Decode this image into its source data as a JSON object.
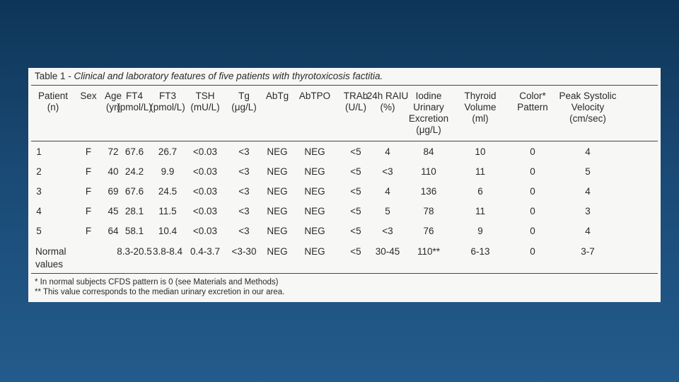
{
  "table": {
    "title_prefix": "Table 1 - ",
    "title_caption": "Clinical and laboratory features of five patients with thyrotoxicosis factitia.",
    "columns": [
      {
        "key": "patient",
        "line1": "Patient",
        "line2": "(n)",
        "line3": "",
        "line4": ""
      },
      {
        "key": "sex",
        "line1": "Sex",
        "line2": "",
        "line3": "",
        "line4": ""
      },
      {
        "key": "age",
        "line1": "Age",
        "line2": "(yr)",
        "line3": "",
        "line4": ""
      },
      {
        "key": "ft4",
        "line1": "FT4",
        "line2": "(pmol/L)",
        "line3": "",
        "line4": ""
      },
      {
        "key": "ft3",
        "line1": "FT3",
        "line2": "(pmol/L)",
        "line3": "",
        "line4": ""
      },
      {
        "key": "tsh",
        "line1": "TSH",
        "line2": "(mU/L)",
        "line3": "",
        "line4": ""
      },
      {
        "key": "tg",
        "line1": "Tg",
        "line2": "(μg/L)",
        "line3": "",
        "line4": ""
      },
      {
        "key": "abtg",
        "line1": "AbTg",
        "line2": "",
        "line3": "",
        "line4": ""
      },
      {
        "key": "abtpo",
        "line1": "AbTPO",
        "line2": "",
        "line3": "",
        "line4": ""
      },
      {
        "key": "trab",
        "line1": "TRAb",
        "line2": "(U/L)",
        "line3": "",
        "line4": ""
      },
      {
        "key": "raiu",
        "line1": "24h RAIU",
        "line2": "(%)",
        "line3": "",
        "line4": ""
      },
      {
        "key": "iodine",
        "line1": "Iodine",
        "line2": "Urinary",
        "line3": "Excretion",
        "line4": "(μg/L)"
      },
      {
        "key": "thyroid",
        "line1": "Thyroid",
        "line2": "Volume",
        "line3": "(ml)",
        "line4": ""
      },
      {
        "key": "color",
        "line1": "Color*",
        "line2": "Pattern",
        "line3": "",
        "line4": ""
      },
      {
        "key": "psv",
        "line1": "Peak Systolic",
        "line2": "Velocity",
        "line3": "(cm/sec)",
        "line4": ""
      }
    ],
    "rows": [
      [
        "1",
        "F",
        "72",
        "67.6",
        "26.7",
        "<0.03",
        "<3",
        "NEG",
        "NEG",
        "<5",
        "4",
        "84",
        "10",
        "0",
        "4"
      ],
      [
        "2",
        "F",
        "40",
        "24.2",
        "9.9",
        "<0.03",
        "<3",
        "NEG",
        "NEG",
        "<5",
        "<3",
        "110",
        "11",
        "0",
        "5"
      ],
      [
        "3",
        "F",
        "69",
        "67.6",
        "24.5",
        "<0.03",
        "<3",
        "NEG",
        "NEG",
        "<5",
        "4",
        "136",
        "6",
        "0",
        "4"
      ],
      [
        "4",
        "F",
        "45",
        "28.1",
        "11.5",
        "<0.03",
        "<3",
        "NEG",
        "NEG",
        "<5",
        "5",
        "78",
        "11",
        "0",
        "3"
      ],
      [
        "5",
        "F",
        "64",
        "58.1",
        "10.4",
        "<0.03",
        "<3",
        "NEG",
        "NEG",
        "<5",
        "<3",
        "76",
        "9",
        "0",
        "4"
      ]
    ],
    "normal_row": {
      "label_line1": "Normal",
      "label_line2": "values",
      "values": [
        "",
        "",
        "8.3-20.5",
        "3.8-8.4",
        "0.4-3.7",
        "<3-30",
        "NEG",
        "NEG",
        "<5",
        "30-45",
        "110**",
        "6-13",
        "0",
        "3-7"
      ]
    },
    "footnotes": [
      "* In normal subjects CFDS pattern is 0 (see Materials and Methods)",
      "** This value corresponds to the median urinary excretion in our area."
    ]
  }
}
